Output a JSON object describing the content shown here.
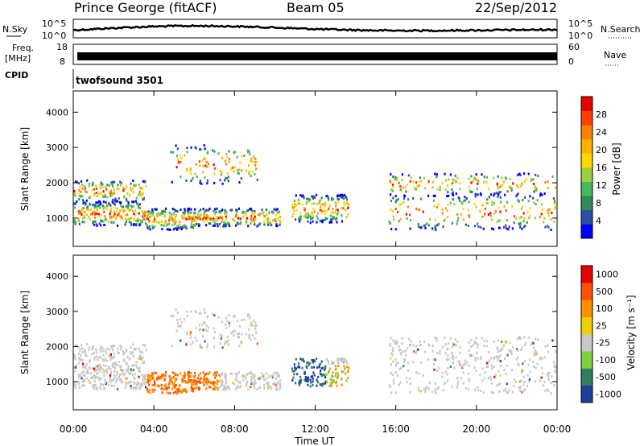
{
  "header": {
    "site": "Prince George (fitACF)",
    "beam": "Beam 05",
    "date": "22/Sep/2012"
  },
  "top_panels": {
    "nsky_label": "N.Sky",
    "nsky_tick_top": "10^5",
    "nsky_tick_bottom": "10^0",
    "nsearch_label": "N.Search",
    "freq_label_1": "Freq.",
    "freq_label_2": "[MHz]",
    "freq_tick_top": "18",
    "freq_tick_bottom": "8",
    "nave_label": "Nave",
    "nave_tick_top": "60",
    "nave_tick_bottom": "0",
    "cpid_label": "CPID",
    "cpid_value": "twofsound 3501"
  },
  "chart_data": [
    {
      "type": "heatmap",
      "name": "power",
      "ylabel": "Slant Range [km]",
      "ylim": [
        200,
        4600
      ],
      "yticks": [
        "1000",
        "2000",
        "3000",
        "4000"
      ],
      "colorbar_label": "Power [dB]",
      "colorbar_ticks": [
        "4",
        "8",
        "12",
        "16",
        "20",
        "24",
        "28"
      ],
      "colors": [
        "#0000ff",
        "#2b4fa8",
        "#2f8a5a",
        "#47b85c",
        "#9bd03a",
        "#ffd700",
        "#ffb000",
        "#ff8000",
        "#ff4000",
        "#e60000"
      ]
    },
    {
      "type": "heatmap",
      "name": "velocity",
      "ylabel": "Slant Range [km]",
      "ylim": [
        200,
        4600
      ],
      "yticks": [
        "1000",
        "2000",
        "3000",
        "4000"
      ],
      "colorbar_label": "Velocity [m s⁻¹]",
      "colorbar_ticks": [
        "1000",
        "500",
        "100",
        "25",
        "-25",
        "-100",
        "-500",
        "-1000"
      ],
      "colors": [
        "#1f3f9f",
        "#2f7f5f",
        "#7fd03f",
        "#c8c8c8",
        "#f0d000",
        "#ff9000",
        "#ff5000",
        "#e60000"
      ]
    }
  ],
  "time_axis": {
    "xlabel": "Time UT",
    "ticks": [
      "00:00",
      "04:00",
      "08:00",
      "12:00",
      "16:00",
      "20:00",
      "00:00"
    ]
  }
}
